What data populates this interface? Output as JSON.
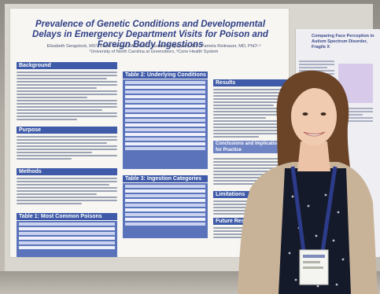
{
  "poster": {
    "title": "Prevalence of Genetic Conditions and Developmental Delays in Emergency Department Visits for Poison and Foreign Body Ingestions",
    "authors": "Elizabeth Sengstock, MS¹, Randi Stewart, MS, CGC¹, Suresh Nagappan, MD², Pamela Reitnauer, MD, PhD¹·²",
    "affiliations": "¹University of North Carolina at Greensboro, ²Cone Health System",
    "sections": {
      "background": "Background",
      "purpose": "Purpose",
      "methods": "Methods",
      "table1": "Table 1: Most Common Poisons",
      "table2": "Table 2: Underlying Conditions",
      "table3": "Table 3: Ingestion Categories",
      "results": "Results",
      "conclusions": "Conclusions and Implications for Practice",
      "limitations": "Limitations",
      "future": "Future Research"
    }
  },
  "poster2": {
    "title": "Comparing Face Perception in Autism Spectrum Disorder, Fragile X"
  }
}
